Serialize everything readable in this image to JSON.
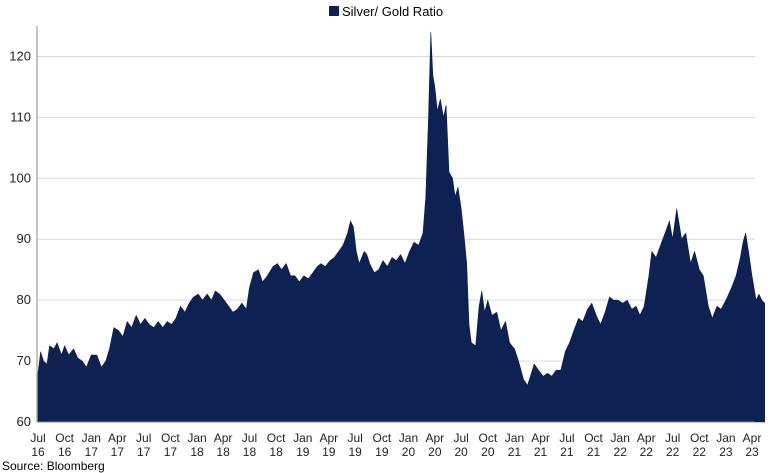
{
  "legend": {
    "label": "Silver/ Gold Ratio",
    "color": "#0d2152"
  },
  "source": "Source: Bloomberg",
  "chart_data": {
    "type": "area",
    "title": "",
    "xlabel": "",
    "ylabel": "",
    "ylim": [
      60,
      125
    ],
    "yticks": [
      60,
      70,
      80,
      90,
      100,
      110,
      120
    ],
    "grid": "horizontal",
    "legend_position": "top-center",
    "x_tick_labels": [
      [
        "Jul",
        "16"
      ],
      [
        "Oct",
        "16"
      ],
      [
        "Jan",
        "17"
      ],
      [
        "Apr",
        "17"
      ],
      [
        "Jul",
        "17"
      ],
      [
        "Oct",
        "17"
      ],
      [
        "Jan",
        "18"
      ],
      [
        "Apr",
        "18"
      ],
      [
        "Jul",
        "18"
      ],
      [
        "Oct",
        "18"
      ],
      [
        "Jan",
        "19"
      ],
      [
        "Apr",
        "19"
      ],
      [
        "Jul",
        "19"
      ],
      [
        "Oct",
        "19"
      ],
      [
        "Jan",
        "20"
      ],
      [
        "Apr",
        "20"
      ],
      [
        "Jul",
        "20"
      ],
      [
        "Oct",
        "20"
      ],
      [
        "Jan",
        "21"
      ],
      [
        "Apr",
        "21"
      ],
      [
        "Jul",
        "21"
      ],
      [
        "Oct",
        "21"
      ],
      [
        "Jan",
        "22"
      ],
      [
        "Apr",
        "22"
      ],
      [
        "Jul",
        "22"
      ],
      [
        "Oct",
        "22"
      ],
      [
        "Jan",
        "23"
      ],
      [
        "Apr",
        "23"
      ]
    ],
    "series": [
      {
        "name": "Silver/ Gold Ratio",
        "color": "#0d2152",
        "points": [
          [
            "2016-07-01",
            68
          ],
          [
            "2016-07-10",
            71.5
          ],
          [
            "2016-07-20",
            70
          ],
          [
            "2016-08-01",
            69.5
          ],
          [
            "2016-08-10",
            72.5
          ],
          [
            "2016-08-25",
            72
          ],
          [
            "2016-09-05",
            73
          ],
          [
            "2016-09-20",
            71
          ],
          [
            "2016-10-01",
            72.5
          ],
          [
            "2016-10-15",
            71
          ],
          [
            "2016-11-01",
            72
          ],
          [
            "2016-11-15",
            70.5
          ],
          [
            "2016-12-01",
            70
          ],
          [
            "2016-12-15",
            69
          ],
          [
            "2017-01-01",
            71
          ],
          [
            "2017-01-20",
            71
          ],
          [
            "2017-02-05",
            69
          ],
          [
            "2017-02-20",
            70
          ],
          [
            "2017-03-05",
            72
          ],
          [
            "2017-03-20",
            75.5
          ],
          [
            "2017-04-05",
            75
          ],
          [
            "2017-04-20",
            74
          ],
          [
            "2017-05-05",
            76.5
          ],
          [
            "2017-05-20",
            75.5
          ],
          [
            "2017-06-05",
            77.5
          ],
          [
            "2017-06-20",
            76
          ],
          [
            "2017-07-05",
            77
          ],
          [
            "2017-07-20",
            76
          ],
          [
            "2017-08-05",
            75.5
          ],
          [
            "2017-08-20",
            76.5
          ],
          [
            "2017-09-05",
            75.5
          ],
          [
            "2017-09-20",
            76.5
          ],
          [
            "2017-10-05",
            76
          ],
          [
            "2017-10-20",
            77
          ],
          [
            "2017-11-05",
            79
          ],
          [
            "2017-11-20",
            78
          ],
          [
            "2017-12-05",
            79.5
          ],
          [
            "2017-12-20",
            80.5
          ],
          [
            "2018-01-05",
            81
          ],
          [
            "2018-01-20",
            80
          ],
          [
            "2018-02-05",
            81
          ],
          [
            "2018-02-20",
            80
          ],
          [
            "2018-03-05",
            81.5
          ],
          [
            "2018-03-20",
            81
          ],
          [
            "2018-04-05",
            80
          ],
          [
            "2018-04-20",
            79
          ],
          [
            "2018-05-05",
            78
          ],
          [
            "2018-05-20",
            78.5
          ],
          [
            "2018-06-05",
            79.5
          ],
          [
            "2018-06-20",
            78.5
          ],
          [
            "2018-07-01",
            82
          ],
          [
            "2018-07-15",
            84.5
          ],
          [
            "2018-08-01",
            85
          ],
          [
            "2018-08-15",
            83
          ],
          [
            "2018-09-01",
            84
          ],
          [
            "2018-09-20",
            85.5
          ],
          [
            "2018-10-05",
            86
          ],
          [
            "2018-10-20",
            85
          ],
          [
            "2018-11-05",
            86
          ],
          [
            "2018-11-20",
            84
          ],
          [
            "2018-12-05",
            84
          ],
          [
            "2018-12-20",
            83
          ],
          [
            "2019-01-05",
            84
          ],
          [
            "2019-01-20",
            83.5
          ],
          [
            "2019-02-05",
            84.5
          ],
          [
            "2019-02-20",
            85.5
          ],
          [
            "2019-03-05",
            86
          ],
          [
            "2019-03-20",
            85.5
          ],
          [
            "2019-04-05",
            86.5
          ],
          [
            "2019-04-20",
            87
          ],
          [
            "2019-05-05",
            88
          ],
          [
            "2019-05-20",
            89
          ],
          [
            "2019-06-05",
            91
          ],
          [
            "2019-06-15",
            93
          ],
          [
            "2019-06-25",
            92
          ],
          [
            "2019-07-05",
            88
          ],
          [
            "2019-07-15",
            86
          ],
          [
            "2019-08-01",
            88
          ],
          [
            "2019-08-10",
            87.5
          ],
          [
            "2019-08-20",
            86
          ],
          [
            "2019-09-05",
            84.5
          ],
          [
            "2019-09-20",
            85
          ],
          [
            "2019-10-05",
            86.5
          ],
          [
            "2019-10-20",
            85.5
          ],
          [
            "2019-11-05",
            87
          ],
          [
            "2019-11-20",
            86.5
          ],
          [
            "2019-12-05",
            87.5
          ],
          [
            "2019-12-20",
            86
          ],
          [
            "2020-01-05",
            88
          ],
          [
            "2020-01-20",
            89.5
          ],
          [
            "2020-02-05",
            89
          ],
          [
            "2020-02-20",
            91
          ],
          [
            "2020-03-01",
            97
          ],
          [
            "2020-03-10",
            110
          ],
          [
            "2020-03-18",
            124
          ],
          [
            "2020-03-25",
            117
          ],
          [
            "2020-04-01",
            115
          ],
          [
            "2020-04-10",
            111
          ],
          [
            "2020-04-20",
            113
          ],
          [
            "2020-05-01",
            110
          ],
          [
            "2020-05-10",
            112
          ],
          [
            "2020-05-20",
            101
          ],
          [
            "2020-06-01",
            100
          ],
          [
            "2020-06-10",
            97
          ],
          [
            "2020-06-20",
            98.5
          ],
          [
            "2020-07-01",
            95
          ],
          [
            "2020-07-10",
            91
          ],
          [
            "2020-07-20",
            86
          ],
          [
            "2020-07-28",
            76
          ],
          [
            "2020-08-05",
            73
          ],
          [
            "2020-08-20",
            72.5
          ],
          [
            "2020-09-01",
            79
          ],
          [
            "2020-09-10",
            81.5
          ],
          [
            "2020-09-20",
            78
          ],
          [
            "2020-10-01",
            80
          ],
          [
            "2020-10-15",
            77.5
          ],
          [
            "2020-11-01",
            78
          ],
          [
            "2020-11-15",
            75
          ],
          [
            "2020-12-01",
            76.5
          ],
          [
            "2020-12-15",
            73
          ],
          [
            "2021-01-01",
            72
          ],
          [
            "2021-01-15",
            70
          ],
          [
            "2021-02-01",
            67
          ],
          [
            "2021-02-15",
            66
          ],
          [
            "2021-02-25",
            67.5
          ],
          [
            "2021-03-10",
            69.5
          ],
          [
            "2021-03-25",
            68.5
          ],
          [
            "2021-04-10",
            67.5
          ],
          [
            "2021-04-25",
            68
          ],
          [
            "2021-05-10",
            67.5
          ],
          [
            "2021-05-25",
            68.5
          ],
          [
            "2021-06-10",
            68.5
          ],
          [
            "2021-06-25",
            71.5
          ],
          [
            "2021-07-10",
            73
          ],
          [
            "2021-07-25",
            75
          ],
          [
            "2021-08-10",
            77
          ],
          [
            "2021-08-25",
            76.5
          ],
          [
            "2021-09-10",
            78.5
          ],
          [
            "2021-09-25",
            79.5
          ],
          [
            "2021-10-10",
            77.5
          ],
          [
            "2021-10-25",
            76
          ],
          [
            "2021-11-10",
            78
          ],
          [
            "2021-11-25",
            80.5
          ],
          [
            "2021-12-10",
            80
          ],
          [
            "2021-12-25",
            80
          ],
          [
            "2022-01-10",
            79.5
          ],
          [
            "2022-01-25",
            80
          ],
          [
            "2022-02-10",
            78.5
          ],
          [
            "2022-02-25",
            79
          ],
          [
            "2022-03-10",
            77.5
          ],
          [
            "2022-03-25",
            79
          ],
          [
            "2022-04-10",
            84
          ],
          [
            "2022-04-20",
            88
          ],
          [
            "2022-05-05",
            87
          ],
          [
            "2022-05-20",
            89
          ],
          [
            "2022-06-05",
            91
          ],
          [
            "2022-06-20",
            93
          ],
          [
            "2022-07-01",
            90
          ],
          [
            "2022-07-15",
            95
          ],
          [
            "2022-08-01",
            90
          ],
          [
            "2022-08-15",
            91
          ],
          [
            "2022-09-01",
            86
          ],
          [
            "2022-09-15",
            88
          ],
          [
            "2022-10-01",
            85
          ],
          [
            "2022-10-15",
            84
          ],
          [
            "2022-11-01",
            79
          ],
          [
            "2022-11-15",
            77
          ],
          [
            "2022-12-01",
            79
          ],
          [
            "2022-12-15",
            78.5
          ],
          [
            "2023-01-01",
            80
          ],
          [
            "2023-01-20",
            82
          ],
          [
            "2023-02-05",
            84
          ],
          [
            "2023-02-20",
            87
          ],
          [
            "2023-03-01",
            89.5
          ],
          [
            "2023-03-10",
            91
          ],
          [
            "2023-03-20",
            88
          ],
          [
            "2023-04-01",
            84
          ],
          [
            "2023-04-15",
            80
          ],
          [
            "2023-04-25",
            81
          ],
          [
            "2023-05-05",
            80
          ],
          [
            "2023-05-15",
            79.5
          ]
        ]
      }
    ]
  }
}
